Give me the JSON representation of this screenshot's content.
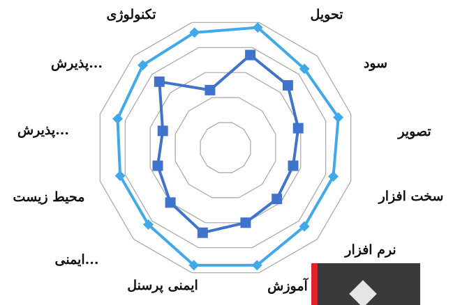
{
  "chart_data": {
    "type": "radar",
    "categories": [
      "تحویل",
      "سود",
      "تصویر",
      "سخت افزار",
      "نرم افزار",
      "آموزش",
      "ایمنی پرسنل",
      "ایمنی...",
      "محیط زیست",
      "پذیرش...",
      "پذیرش...",
      "تکنولوژی"
    ],
    "rings": [
      1,
      2,
      3,
      4,
      5
    ],
    "rmax": 5,
    "series": [
      {
        "color": "#41a9ea",
        "marker": "diamond",
        "values": [
          4.8,
          4.3,
          4.5,
          4.3,
          4.3,
          4.7,
          4.7,
          4.2,
          4.2,
          4.3,
          4.5,
          4.6
        ]
      },
      {
        "color": "#3f73cc",
        "marker": "square",
        "values": [
          3.7,
          3.4,
          2.9,
          2.7,
          2.8,
          3.0,
          3.4,
          3.0,
          2.7,
          2.5,
          3.6,
          2.3
        ]
      }
    ]
  }
}
